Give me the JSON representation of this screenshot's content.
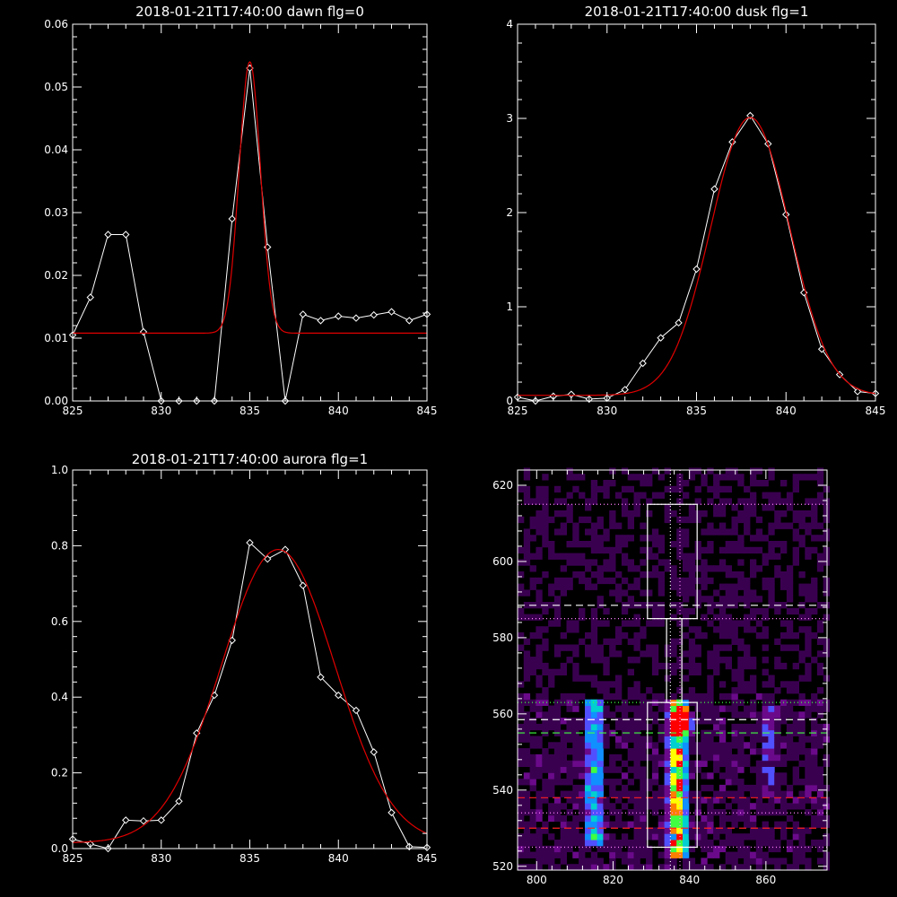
{
  "chart_data": [
    {
      "id": "dawn",
      "type": "line",
      "title": "2018-01-21T17:40:00 dawn flg=0",
      "xlim": [
        825,
        845
      ],
      "ylim": [
        0,
        0.06
      ],
      "xticks": [
        825,
        830,
        835,
        840,
        845
      ],
      "yticks": [
        0.0,
        0.01,
        0.02,
        0.03,
        0.04,
        0.05,
        0.06
      ],
      "ytick_labels": [
        "0.00",
        "0.01",
        "0.02",
        "0.03",
        "0.04",
        "0.05",
        "0.06"
      ],
      "series": [
        {
          "style": "observed",
          "x": [
            825,
            826,
            827,
            828,
            829,
            830,
            831,
            832,
            833,
            834,
            835,
            836,
            837,
            838,
            839,
            840,
            841,
            842,
            843,
            844,
            845
          ],
          "y": [
            0.0105,
            0.0165,
            0.0265,
            0.0265,
            0.011,
            0.0,
            0.0,
            0.0,
            0.0,
            0.029,
            0.053,
            0.0245,
            0.0,
            0.0138,
            0.0128,
            0.0135,
            0.0132,
            0.0137,
            0.0142,
            0.0128,
            0.0138
          ]
        },
        {
          "style": "fit",
          "gaussian": {
            "baseline": 0.0108,
            "amplitude": 0.0432,
            "center": 835.0,
            "sigma": 0.6
          }
        }
      ]
    },
    {
      "id": "dusk",
      "type": "line",
      "title": "2018-01-21T17:40:00 dusk flg=1",
      "xlim": [
        825,
        845
      ],
      "ylim": [
        0,
        4
      ],
      "xticks": [
        825,
        830,
        835,
        840,
        845
      ],
      "yticks": [
        0,
        1,
        2,
        3,
        4
      ],
      "ytick_labels": [
        "0",
        "1",
        "2",
        "3",
        "4"
      ],
      "series": [
        {
          "style": "observed",
          "x": [
            825,
            826,
            827,
            828,
            829,
            830,
            831,
            832,
            833,
            834,
            835,
            836,
            837,
            838,
            839,
            840,
            841,
            842,
            843,
            844,
            845
          ],
          "y": [
            0.04,
            0.0,
            0.05,
            0.07,
            0.02,
            0.03,
            0.12,
            0.4,
            0.67,
            0.83,
            1.4,
            2.25,
            2.75,
            3.03,
            2.73,
            1.98,
            1.15,
            0.55,
            0.28,
            0.1,
            0.08
          ]
        },
        {
          "style": "fit",
          "gaussian": {
            "baseline": 0.06,
            "amplitude": 2.95,
            "center": 838.0,
            "sigma": 2.2
          }
        }
      ]
    },
    {
      "id": "aurora",
      "type": "line",
      "title": "2018-01-21T17:40:00 aurora flg=1",
      "xlim": [
        825,
        845
      ],
      "ylim": [
        0,
        1.0
      ],
      "xticks": [
        825,
        830,
        835,
        840,
        845
      ],
      "yticks": [
        0.0,
        0.2,
        0.4,
        0.6,
        0.8,
        1.0
      ],
      "ytick_labels": [
        "0.0",
        "0.2",
        "0.4",
        "0.6",
        "0.8",
        "1.0"
      ],
      "series": [
        {
          "style": "observed",
          "x": [
            825,
            826,
            827,
            828,
            829,
            830,
            831,
            832,
            833,
            834,
            835,
            836,
            837,
            838,
            839,
            840,
            841,
            842,
            843,
            844,
            845
          ],
          "y": [
            0.025,
            0.012,
            0.0,
            0.075,
            0.073,
            0.075,
            0.125,
            0.305,
            0.405,
            0.55,
            0.808,
            0.765,
            0.79,
            0.695,
            0.453,
            0.405,
            0.365,
            0.255,
            0.095,
            0.005,
            0.003
          ]
        },
        {
          "style": "fit",
          "gaussian": {
            "baseline": 0.015,
            "amplitude": 0.775,
            "center": 836.6,
            "sigma": 3.2
          }
        }
      ]
    },
    {
      "id": "image",
      "type": "heatmap",
      "title": "",
      "xlim": [
        795,
        876
      ],
      "ylim": [
        519,
        624
      ],
      "xticks": [
        800,
        820,
        840,
        860
      ],
      "yticks": [
        520,
        540,
        560,
        580,
        600,
        620
      ],
      "colormap": [
        "#000000",
        "#3a0050",
        "#6a0a8a",
        "#5050ff",
        "#1090ff",
        "#00d0d0",
        "#40ff40",
        "#ffff00",
        "#ff8000",
        "#ff0000"
      ],
      "emission_columns": [
        {
          "x": 815,
          "width": 5,
          "y_top": 563,
          "y_bottom": 526,
          "peak": 0.55
        },
        {
          "x": 837,
          "width": 5,
          "y_top": 563,
          "y_bottom": 524,
          "peak": 1.0
        },
        {
          "x": 861,
          "width": 4,
          "y_top": 562,
          "y_bottom": 540,
          "peak": 0.22
        }
      ],
      "hotspot": {
        "x": 838,
        "y": 558
      },
      "boxes": [
        {
          "x0": 829,
          "x1": 842,
          "y0": 585,
          "y1": 615,
          "color": "#ffffff"
        },
        {
          "x0": 834,
          "x1": 838,
          "y0": 563,
          "y1": 585,
          "color": "#ffffff"
        },
        {
          "x0": 829,
          "x1": 842,
          "y0": 525,
          "y1": 563,
          "color": "#ffffff"
        }
      ],
      "hlines": [
        {
          "y": 615,
          "style": "dotted",
          "color": "#ff80ff"
        },
        {
          "y": 588.5,
          "style": "dashed",
          "color": "#ffffff"
        },
        {
          "y": 585,
          "style": "dotted",
          "color": "#ff80ff"
        },
        {
          "y": 563,
          "style": "dotted",
          "color": "#40ff40"
        },
        {
          "y": 558.5,
          "style": "dashed",
          "color": "#ffffff"
        },
        {
          "y": 555,
          "style": "dashed",
          "color": "#40ff40"
        },
        {
          "y": 538,
          "style": "dashed",
          "color": "#ff2020"
        },
        {
          "y": 534,
          "style": "dotted",
          "color": "#ff80ff"
        },
        {
          "y": 530,
          "style": "dashed",
          "color": "#ff2020"
        },
        {
          "y": 525,
          "style": "dotted",
          "color": "#ff80ff"
        }
      ],
      "vlines": [
        {
          "x": 835,
          "style": "dotted",
          "color": "#ffffff"
        },
        {
          "x": 837.5,
          "style": "dotted",
          "color": "#ff80ff"
        }
      ]
    }
  ]
}
